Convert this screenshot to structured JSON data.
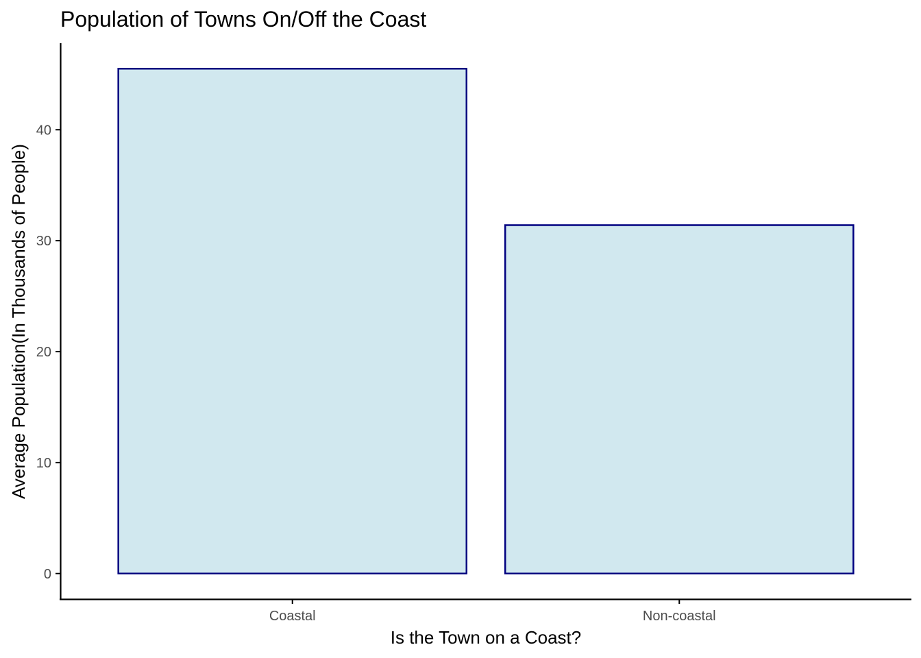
{
  "chart_data": {
    "type": "bar",
    "title": "Population of Towns On/Off the Coast",
    "xlabel": "Is the Town on a Coast?",
    "ylabel": "Average Population(In Thousands of People)",
    "categories": [
      "Coastal",
      "Non-coastal"
    ],
    "values": [
      45.5,
      31.4
    ],
    "ylim": [
      -2.3,
      47.8
    ],
    "yticks": [
      0,
      10,
      20,
      30,
      40
    ],
    "grid": false,
    "legend": "none",
    "colors": {
      "bar_fill": "#d1e8ef",
      "bar_stroke": "#000080",
      "axis": "#000000",
      "tick_text": "#4d4d4d",
      "text": "#000000",
      "background": "#ffffff"
    }
  }
}
